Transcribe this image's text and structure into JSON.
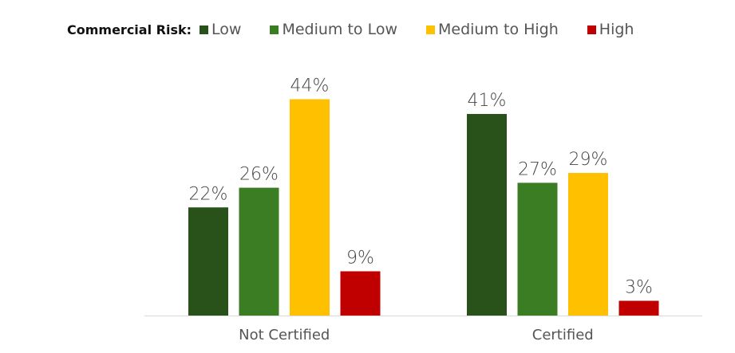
{
  "chart_data": {
    "type": "bar",
    "legend_title": "Commercial Risk:",
    "legend_position": "top-left",
    "categories": [
      "Not Certified",
      "Certified"
    ],
    "series": [
      {
        "name": "Low",
        "color": "#285219",
        "values": [
          22,
          41
        ],
        "labels": [
          "22%",
          "41%"
        ]
      },
      {
        "name": "Medium to Low",
        "color": "#3b7d23",
        "values": [
          26,
          27
        ],
        "labels": [
          "26%",
          "27%"
        ]
      },
      {
        "name": "Medium to High",
        "color": "#ffc000",
        "values": [
          44,
          29
        ],
        "labels": [
          "44%",
          "29%"
        ]
      },
      {
        "name": "High",
        "color": "#c00000",
        "values": [
          9,
          3
        ],
        "labels": [
          "9%",
          "3%"
        ]
      }
    ],
    "ylim": [
      0,
      50
    ],
    "grid": false,
    "title": "",
    "xlabel": "",
    "ylabel": ""
  }
}
